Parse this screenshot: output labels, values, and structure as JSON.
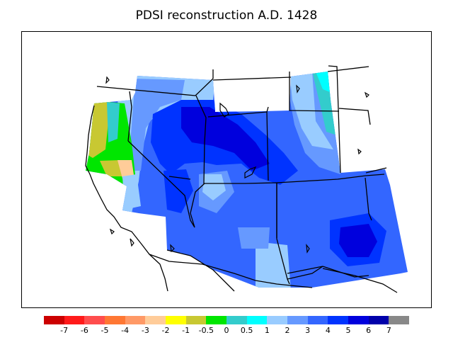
{
  "title": "PDSI reconstruction A.D. 1428",
  "legend": {
    "colors": [
      "#cc0000",
      "#ff1a1a",
      "#ff4d4d",
      "#ff7733",
      "#ff9966",
      "#ffcc99",
      "#ffff00",
      "#c8c832",
      "#00e600",
      "#33cccc",
      "#00ffff",
      "#99ccff",
      "#6699ff",
      "#3366ff",
      "#0033ff",
      "#0000dd",
      "#0000aa",
      "#888888"
    ],
    "labels": [
      "-7",
      "-6",
      "-5",
      "-4",
      "-3",
      "-2",
      "-1",
      "-0.5",
      "0",
      "0.5",
      "1",
      "2",
      "3",
      "4",
      "5",
      "6",
      "7"
    ]
  }
}
